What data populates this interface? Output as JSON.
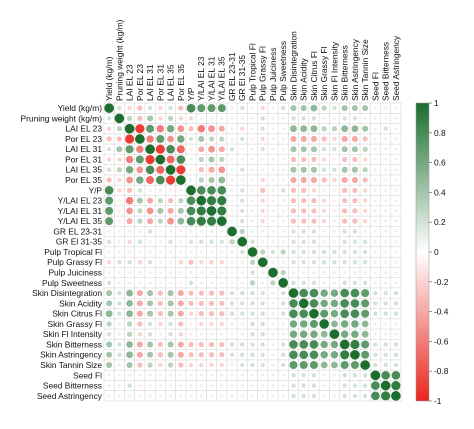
{
  "chart_data": {
    "type": "heatmap",
    "subtype": "correlation-circles",
    "title": "",
    "xlabel": "",
    "ylabel": "",
    "variables": [
      "Yield (kg/m)",
      "Pruning weight (kg/m)",
      "LAI EL 23",
      "Por EL 23",
      "LAI EL 31",
      "Por EL 31",
      "LAI EL 35",
      "Por EL 35",
      "Y/P",
      "Y/LAI EL 23",
      "Y/LAI EL 31",
      "Y/LAI EL 35",
      "GR EL 23-31",
      "GR El 31-35",
      "Pulp Tropical Fl",
      "Pulp Grassy Fl",
      "Pulp Juiciness",
      "Pulp Sweetness",
      "Skin Disintegration",
      "Skin Acidity",
      "Skin Citrus Fl",
      "Skin Grassy Fl",
      "Skin Fl Intensity",
      "Skin Bitterness",
      "Skin Astringency",
      "Skin Tannin Size",
      "Seed Fl",
      "Seed Bitterness",
      "Seed Astringency"
    ],
    "matrix": [
      [
        1,
        0.2,
        -0.2,
        -0.3,
        0.2,
        -0.2,
        0.2,
        -0.3,
        0.8,
        0.7,
        0.7,
        0.7,
        0.1,
        0.2,
        0.1,
        -0.2,
        0.1,
        0.2,
        0.4,
        0.4,
        0.5,
        0.3,
        0.2,
        0.4,
        0.4,
        0.4,
        0.1,
        0.1,
        0.1
      ],
      [
        0.2,
        1,
        0.3,
        -0.3,
        0.4,
        -0.2,
        0.3,
        -0.2,
        -0.2,
        -0.1,
        -0.1,
        -0.1,
        0.1,
        -0.1,
        0.1,
        0.2,
        -0.1,
        0.1,
        0.2,
        0.2,
        0.2,
        0.1,
        0.1,
        0.2,
        0.2,
        0.1,
        0.1,
        0.1,
        0.1
      ],
      [
        -0.2,
        0.3,
        1,
        -0.9,
        0.7,
        -0.6,
        0.6,
        -0.5,
        -0.3,
        -0.6,
        -0.5,
        -0.4,
        0.1,
        -0.2,
        0.1,
        0.2,
        -0.1,
        0.1,
        0.5,
        0.5,
        0.5,
        0.3,
        0.3,
        0.5,
        0.5,
        0.4,
        0.1,
        0.2,
        0.1
      ],
      [
        -0.3,
        -0.3,
        -0.9,
        1,
        -0.6,
        0.7,
        -0.5,
        0.6,
        0.2,
        0.4,
        0.3,
        0.3,
        -0.1,
        0.2,
        -0.1,
        -0.2,
        0.1,
        -0.1,
        -0.4,
        -0.4,
        -0.4,
        -0.3,
        -0.2,
        -0.4,
        -0.4,
        -0.3,
        -0.1,
        -0.1,
        -0.1
      ],
      [
        0.2,
        0.4,
        0.7,
        -0.6,
        1,
        -0.9,
        0.8,
        -0.7,
        -0.1,
        -0.4,
        -0.5,
        -0.4,
        0.2,
        -0.1,
        0.1,
        0.2,
        -0.1,
        0.1,
        0.4,
        0.4,
        0.4,
        0.2,
        0.2,
        0.4,
        0.4,
        0.3,
        0.1,
        0.1,
        0.1
      ],
      [
        -0.2,
        -0.2,
        -0.6,
        0.7,
        -0.9,
        1,
        -0.7,
        0.8,
        0.1,
        0.3,
        0.4,
        0.3,
        -0.1,
        0.1,
        -0.1,
        -0.1,
        0.1,
        -0.1,
        -0.3,
        -0.3,
        -0.3,
        -0.2,
        -0.1,
        -0.3,
        -0.3,
        -0.2,
        -0.1,
        -0.1,
        -0.1
      ],
      [
        0.2,
        0.3,
        0.6,
        -0.5,
        0.8,
        -0.7,
        1,
        -0.9,
        -0.1,
        -0.3,
        -0.4,
        -0.5,
        0.1,
        0.2,
        0.1,
        0.1,
        -0.1,
        0.1,
        0.4,
        0.4,
        0.4,
        0.2,
        0.2,
        0.4,
        0.4,
        0.3,
        0.1,
        0.1,
        0.1
      ],
      [
        -0.3,
        -0.2,
        -0.5,
        0.6,
        -0.7,
        0.8,
        -0.9,
        1,
        0.1,
        0.3,
        0.4,
        0.5,
        -0.1,
        -0.1,
        -0.1,
        -0.2,
        0.1,
        -0.1,
        -0.4,
        -0.4,
        -0.4,
        -0.3,
        -0.2,
        -0.4,
        -0.4,
        -0.3,
        -0.1,
        -0.1,
        -0.1
      ],
      [
        0.8,
        -0.2,
        -0.3,
        0.2,
        -0.1,
        0.1,
        -0.1,
        0.1,
        1,
        0.8,
        0.8,
        0.8,
        0.1,
        0.2,
        0.1,
        -0.3,
        0.1,
        0.2,
        -0.3,
        -0.3,
        -0.2,
        -0.1,
        -0.1,
        -0.3,
        -0.3,
        -0.2,
        0.1,
        0.1,
        0.1
      ],
      [
        0.7,
        -0.1,
        -0.6,
        0.4,
        -0.4,
        0.3,
        -0.3,
        0.3,
        0.8,
        1,
        0.9,
        0.9,
        0.1,
        0.2,
        0.1,
        -0.2,
        0.1,
        0.1,
        -0.3,
        -0.3,
        -0.3,
        -0.2,
        -0.1,
        -0.3,
        -0.3,
        -0.2,
        0.1,
        0.1,
        0.1
      ],
      [
        0.7,
        -0.1,
        -0.5,
        0.3,
        -0.5,
        0.4,
        -0.4,
        0.4,
        0.8,
        0.9,
        1,
        0.9,
        0.1,
        0.2,
        0.1,
        -0.2,
        0.1,
        0.1,
        -0.3,
        -0.3,
        -0.3,
        -0.2,
        -0.1,
        -0.3,
        -0.3,
        -0.2,
        0.1,
        0.1,
        0.1
      ],
      [
        0.7,
        -0.1,
        -0.4,
        0.3,
        -0.4,
        0.3,
        -0.5,
        0.5,
        0.8,
        0.9,
        0.9,
        1,
        0.1,
        0.2,
        0.1,
        -0.2,
        0.1,
        0.1,
        -0.3,
        -0.3,
        -0.3,
        -0.2,
        -0.1,
        -0.3,
        -0.3,
        -0.2,
        0.1,
        0.1,
        0.1
      ],
      [
        0.1,
        0.1,
        0.1,
        -0.1,
        0.2,
        -0.1,
        0.1,
        -0.1,
        0.1,
        0.1,
        0.1,
        0.1,
        1,
        0.3,
        0.1,
        0.1,
        -0.1,
        0.1,
        0.2,
        0.2,
        0.2,
        0.1,
        0.1,
        0.2,
        0.2,
        0.1,
        0.1,
        0.1,
        0.1
      ],
      [
        0.2,
        -0.1,
        -0.2,
        0.2,
        -0.1,
        0.1,
        0.2,
        -0.1,
        0.2,
        0.2,
        0.2,
        0.2,
        0.3,
        1,
        0.2,
        -0.1,
        0.1,
        0.1,
        0.2,
        0.2,
        0.2,
        0.1,
        0.1,
        0.2,
        0.2,
        0.2,
        0.1,
        0.1,
        0.1
      ],
      [
        0.1,
        0.1,
        0.1,
        -0.1,
        0.1,
        -0.1,
        0.1,
        -0.1,
        0.1,
        0.1,
        0.1,
        0.1,
        0.1,
        0.2,
        1,
        0.3,
        0.2,
        0.3,
        0.2,
        0.2,
        0.2,
        0.2,
        0.2,
        0.2,
        0.2,
        0.2,
        0.1,
        0.1,
        0.1
      ],
      [
        -0.2,
        0.2,
        0.2,
        -0.2,
        0.2,
        -0.1,
        0.1,
        -0.2,
        -0.3,
        -0.2,
        -0.2,
        -0.2,
        0.1,
        -0.1,
        0.3,
        1,
        0.1,
        0.1,
        0.2,
        0.2,
        0.2,
        0.2,
        0.2,
        0.2,
        0.2,
        0.2,
        0.1,
        0.1,
        0.1
      ],
      [
        0.1,
        -0.1,
        -0.1,
        0.1,
        -0.1,
        0.1,
        -0.1,
        0.1,
        0.1,
        0.1,
        0.1,
        0.1,
        -0.1,
        0.1,
        0.2,
        0.1,
        1,
        0.3,
        0.1,
        0.1,
        0.1,
        0.1,
        0.1,
        0.1,
        0.1,
        0.1,
        0.1,
        0.1,
        0.1
      ],
      [
        0.2,
        0.1,
        0.1,
        -0.1,
        0.1,
        -0.1,
        0.1,
        -0.1,
        0.2,
        0.1,
        0.1,
        0.1,
        0.1,
        0.1,
        0.3,
        0.1,
        0.3,
        1,
        0.2,
        0.2,
        0.2,
        0.1,
        0.1,
        0.2,
        0.2,
        0.2,
        0.1,
        0.1,
        0.1
      ],
      [
        0.4,
        0.2,
        0.5,
        -0.4,
        0.4,
        -0.3,
        0.4,
        -0.4,
        -0.3,
        -0.3,
        -0.3,
        -0.3,
        0.2,
        0.2,
        0.2,
        0.2,
        0.1,
        0.2,
        1,
        0.8,
        0.8,
        0.6,
        0.6,
        0.8,
        0.8,
        0.7,
        0.2,
        0.2,
        0.2
      ],
      [
        0.4,
        0.2,
        0.5,
        -0.4,
        0.4,
        -0.3,
        0.4,
        -0.4,
        -0.3,
        -0.3,
        -0.3,
        -0.3,
        0.2,
        0.2,
        0.2,
        0.2,
        0.1,
        0.2,
        0.8,
        1,
        0.8,
        0.6,
        0.6,
        0.8,
        0.8,
        0.7,
        0.2,
        0.2,
        0.2
      ],
      [
        0.5,
        0.2,
        0.5,
        -0.4,
        0.4,
        -0.3,
        0.4,
        -0.4,
        -0.2,
        -0.3,
        -0.3,
        -0.3,
        0.2,
        0.2,
        0.2,
        0.2,
        0.1,
        0.2,
        0.8,
        0.8,
        1,
        0.7,
        0.6,
        0.8,
        0.8,
        0.7,
        0.2,
        0.2,
        0.2
      ],
      [
        0.3,
        0.1,
        0.3,
        -0.3,
        0.2,
        -0.2,
        0.2,
        -0.3,
        -0.1,
        -0.2,
        -0.2,
        -0.2,
        0.1,
        0.1,
        0.2,
        0.2,
        0.1,
        0.1,
        0.6,
        0.6,
        0.7,
        1,
        0.5,
        0.6,
        0.6,
        0.5,
        0.1,
        0.1,
        0.1
      ],
      [
        0.2,
        0.1,
        0.3,
        -0.2,
        0.2,
        -0.1,
        0.2,
        -0.2,
        -0.1,
        -0.1,
        -0.1,
        -0.1,
        0.1,
        0.1,
        0.2,
        0.2,
        0.1,
        0.1,
        0.6,
        0.6,
        0.6,
        0.5,
        1,
        0.6,
        0.6,
        0.5,
        0.1,
        0.1,
        0.1
      ],
      [
        0.4,
        0.2,
        0.5,
        -0.4,
        0.4,
        -0.3,
        0.4,
        -0.4,
        -0.3,
        -0.3,
        -0.3,
        -0.3,
        0.2,
        0.2,
        0.2,
        0.2,
        0.1,
        0.2,
        0.8,
        0.8,
        0.8,
        0.6,
        0.6,
        1,
        0.9,
        0.7,
        0.2,
        0.2,
        0.2
      ],
      [
        0.4,
        0.2,
        0.5,
        -0.4,
        0.4,
        -0.3,
        0.4,
        -0.4,
        -0.3,
        -0.3,
        -0.3,
        -0.3,
        0.2,
        0.2,
        0.2,
        0.2,
        0.1,
        0.2,
        0.8,
        0.8,
        0.8,
        0.6,
        0.6,
        0.9,
        1,
        0.7,
        0.2,
        0.2,
        0.2
      ],
      [
        0.4,
        0.1,
        0.4,
        -0.3,
        0.3,
        -0.2,
        0.3,
        -0.3,
        -0.2,
        -0.2,
        -0.2,
        -0.2,
        0.1,
        0.2,
        0.2,
        0.2,
        0.1,
        0.2,
        0.7,
        0.7,
        0.7,
        0.5,
        0.5,
        0.7,
        0.7,
        1,
        0.2,
        0.2,
        0.2
      ],
      [
        0.1,
        0.1,
        0.1,
        -0.1,
        0.1,
        -0.1,
        0.1,
        -0.1,
        0.1,
        0.1,
        0.1,
        0.1,
        0.1,
        0.1,
        0.1,
        0.1,
        0.1,
        0.1,
        0.2,
        0.2,
        0.2,
        0.1,
        0.1,
        0.2,
        0.2,
        0.2,
        1,
        0.8,
        0.8
      ],
      [
        0.1,
        0.1,
        0.2,
        -0.1,
        0.1,
        -0.1,
        0.1,
        -0.1,
        0.1,
        0.1,
        0.1,
        0.1,
        0.1,
        0.1,
        0.1,
        0.1,
        0.1,
        0.1,
        0.2,
        0.2,
        0.2,
        0.1,
        0.1,
        0.2,
        0.2,
        0.2,
        0.8,
        1,
        0.9
      ],
      [
        0.1,
        0.1,
        0.1,
        -0.1,
        0.1,
        -0.1,
        0.1,
        -0.1,
        0.1,
        0.1,
        0.1,
        0.1,
        0.1,
        0.1,
        0.1,
        0.1,
        0.1,
        0.1,
        0.2,
        0.2,
        0.2,
        0.1,
        0.1,
        0.2,
        0.2,
        0.2,
        0.8,
        0.9,
        1
      ]
    ],
    "value_range": [
      -1,
      1
    ],
    "colorbar": {
      "ticks": [
        "1",
        "0.8",
        "0.6",
        "0.4",
        "0.2",
        "0",
        "-0.2",
        "-0.4",
        "-0.6",
        "-0.8",
        "-1"
      ],
      "tick_values": [
        1,
        0.8,
        0.6,
        0.4,
        0.2,
        0,
        -0.2,
        -0.4,
        -0.6,
        -0.8,
        -1
      ],
      "placement": "right"
    },
    "colors": {
      "positive": "#1b6e2e",
      "neutral": "#ffffff",
      "negative": "#e8261e",
      "grid": "#d7d7d7"
    },
    "grid": true
  }
}
